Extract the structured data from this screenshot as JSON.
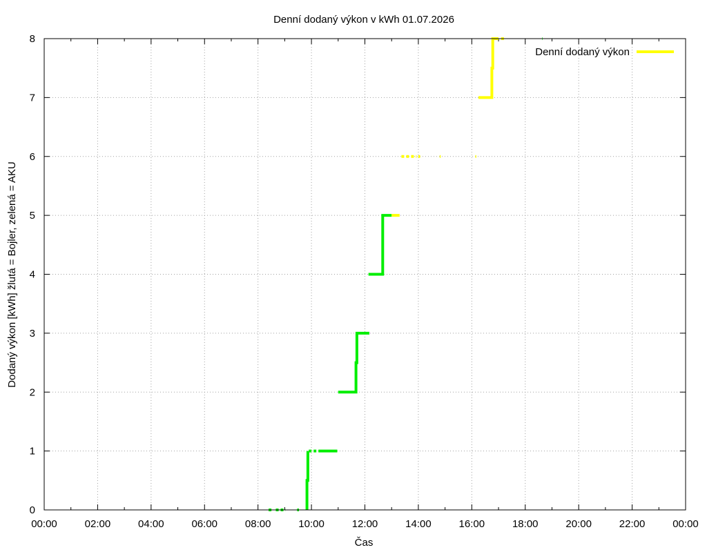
{
  "chart_data": {
    "type": "line",
    "title": "Denní dodaný výkon v kWh 01.07.2026",
    "xlabel": "Čas",
    "ylabel": "Dodaný výkon [kWh]  žlutá = Bojler, zelená = AKU",
    "x_ticks": [
      "00:00",
      "02:00",
      "04:00",
      "06:00",
      "08:00",
      "10:00",
      "12:00",
      "14:00",
      "16:00",
      "18:00",
      "20:00",
      "22:00",
      "00:00"
    ],
    "xlim": [
      "00:00",
      "24:00"
    ],
    "ylim": [
      0,
      8
    ],
    "y_ticks": [
      0,
      1,
      2,
      3,
      4,
      5,
      6,
      7,
      8
    ],
    "grid": true,
    "legend": {
      "position": "top-right",
      "entries": [
        {
          "label": "Denní dodaný výkon",
          "color": "#ffff00"
        }
      ]
    },
    "series": [
      {
        "color": "#00ee00",
        "segments": [
          {
            "x": [
              "08:24",
              "08:32"
            ],
            "y": [
              0,
              0
            ],
            "style": "dashed"
          },
          {
            "x": [
              "08:40",
              "09:02"
            ],
            "y": [
              0,
              0
            ],
            "style": "dashed"
          },
          {
            "x": [
              "09:28",
              "09:32"
            ],
            "y": [
              0,
              0
            ],
            "style": "dashed"
          },
          {
            "x": [
              "09:50",
              "09:50",
              "09:52",
              "09:52"
            ],
            "y": [
              0,
              0.5,
              0.5,
              1
            ]
          },
          {
            "x": [
              "09:54",
              "10:16"
            ],
            "y": [
              1,
              1
            ],
            "style": "dashed"
          },
          {
            "x": [
              "10:16",
              "10:58"
            ],
            "y": [
              1,
              1
            ]
          },
          {
            "x": [
              "11:00",
              "11:40",
              "11:40",
              "11:42",
              "11:42",
              "12:10"
            ],
            "y": [
              2,
              2,
              2.5,
              2.5,
              3,
              3
            ]
          },
          {
            "x": [
              "12:08",
              "12:40",
              "12:40",
              "13:00"
            ],
            "y": [
              4,
              4,
              5,
              5
            ]
          },
          {
            "x": [
              "18:38",
              "18:39"
            ],
            "y": [
              8,
              8
            ]
          }
        ]
      },
      {
        "color": "#ffff00",
        "segments": [
          {
            "x": [
              "13:00",
              "13:18"
            ],
            "y": [
              5,
              5
            ]
          },
          {
            "x": [
              "13:22",
              "13:56"
            ],
            "y": [
              6,
              6
            ],
            "style": "dashed"
          },
          {
            "x": [
              "14:00",
              "14:04"
            ],
            "y": [
              6,
              6
            ]
          },
          {
            "x": [
              "14:48",
              "14:50"
            ],
            "y": [
              6,
              6
            ]
          },
          {
            "x": [
              "16:08",
              "16:10"
            ],
            "y": [
              6,
              6
            ]
          },
          {
            "x": [
              "16:15",
              "16:45",
              "16:45",
              "16:47",
              "16:47",
              "17:00"
            ],
            "y": [
              7,
              7,
              7.5,
              7.5,
              8,
              8
            ]
          },
          {
            "x": [
              "17:06",
              "17:16"
            ],
            "y": [
              8,
              8
            ],
            "style": "dashed"
          }
        ]
      }
    ]
  }
}
